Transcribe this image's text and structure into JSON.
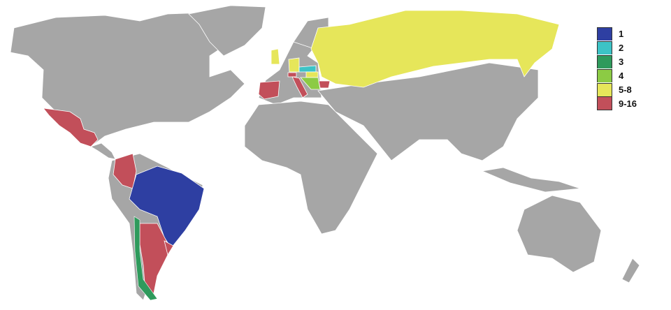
{
  "legend": [
    {
      "label": "1",
      "color": "#2e3fa2"
    },
    {
      "label": "2",
      "color": "#3cc3c6"
    },
    {
      "label": "3",
      "color": "#2e9a5c"
    },
    {
      "label": "4",
      "color": "#8ccb44"
    },
    {
      "label": "5-8",
      "color": "#e6e65a"
    },
    {
      "label": "9-16",
      "color": "#c24f5a"
    }
  ],
  "countries": {
    "brazil": "1",
    "czechoslovakia": "2",
    "chile": "3",
    "yugoslavia": "4",
    "ussr": "5-8",
    "england": "5-8",
    "west-germany": "5-8",
    "hungary": "5-8",
    "argentina": "9-16",
    "uruguay": "9-16",
    "colombia": "9-16",
    "mexico": "9-16",
    "spain": "9-16",
    "switzerland": "9-16",
    "italy": "9-16",
    "bulgaria": "9-16"
  },
  "base_land_color": "#a6a6a6"
}
